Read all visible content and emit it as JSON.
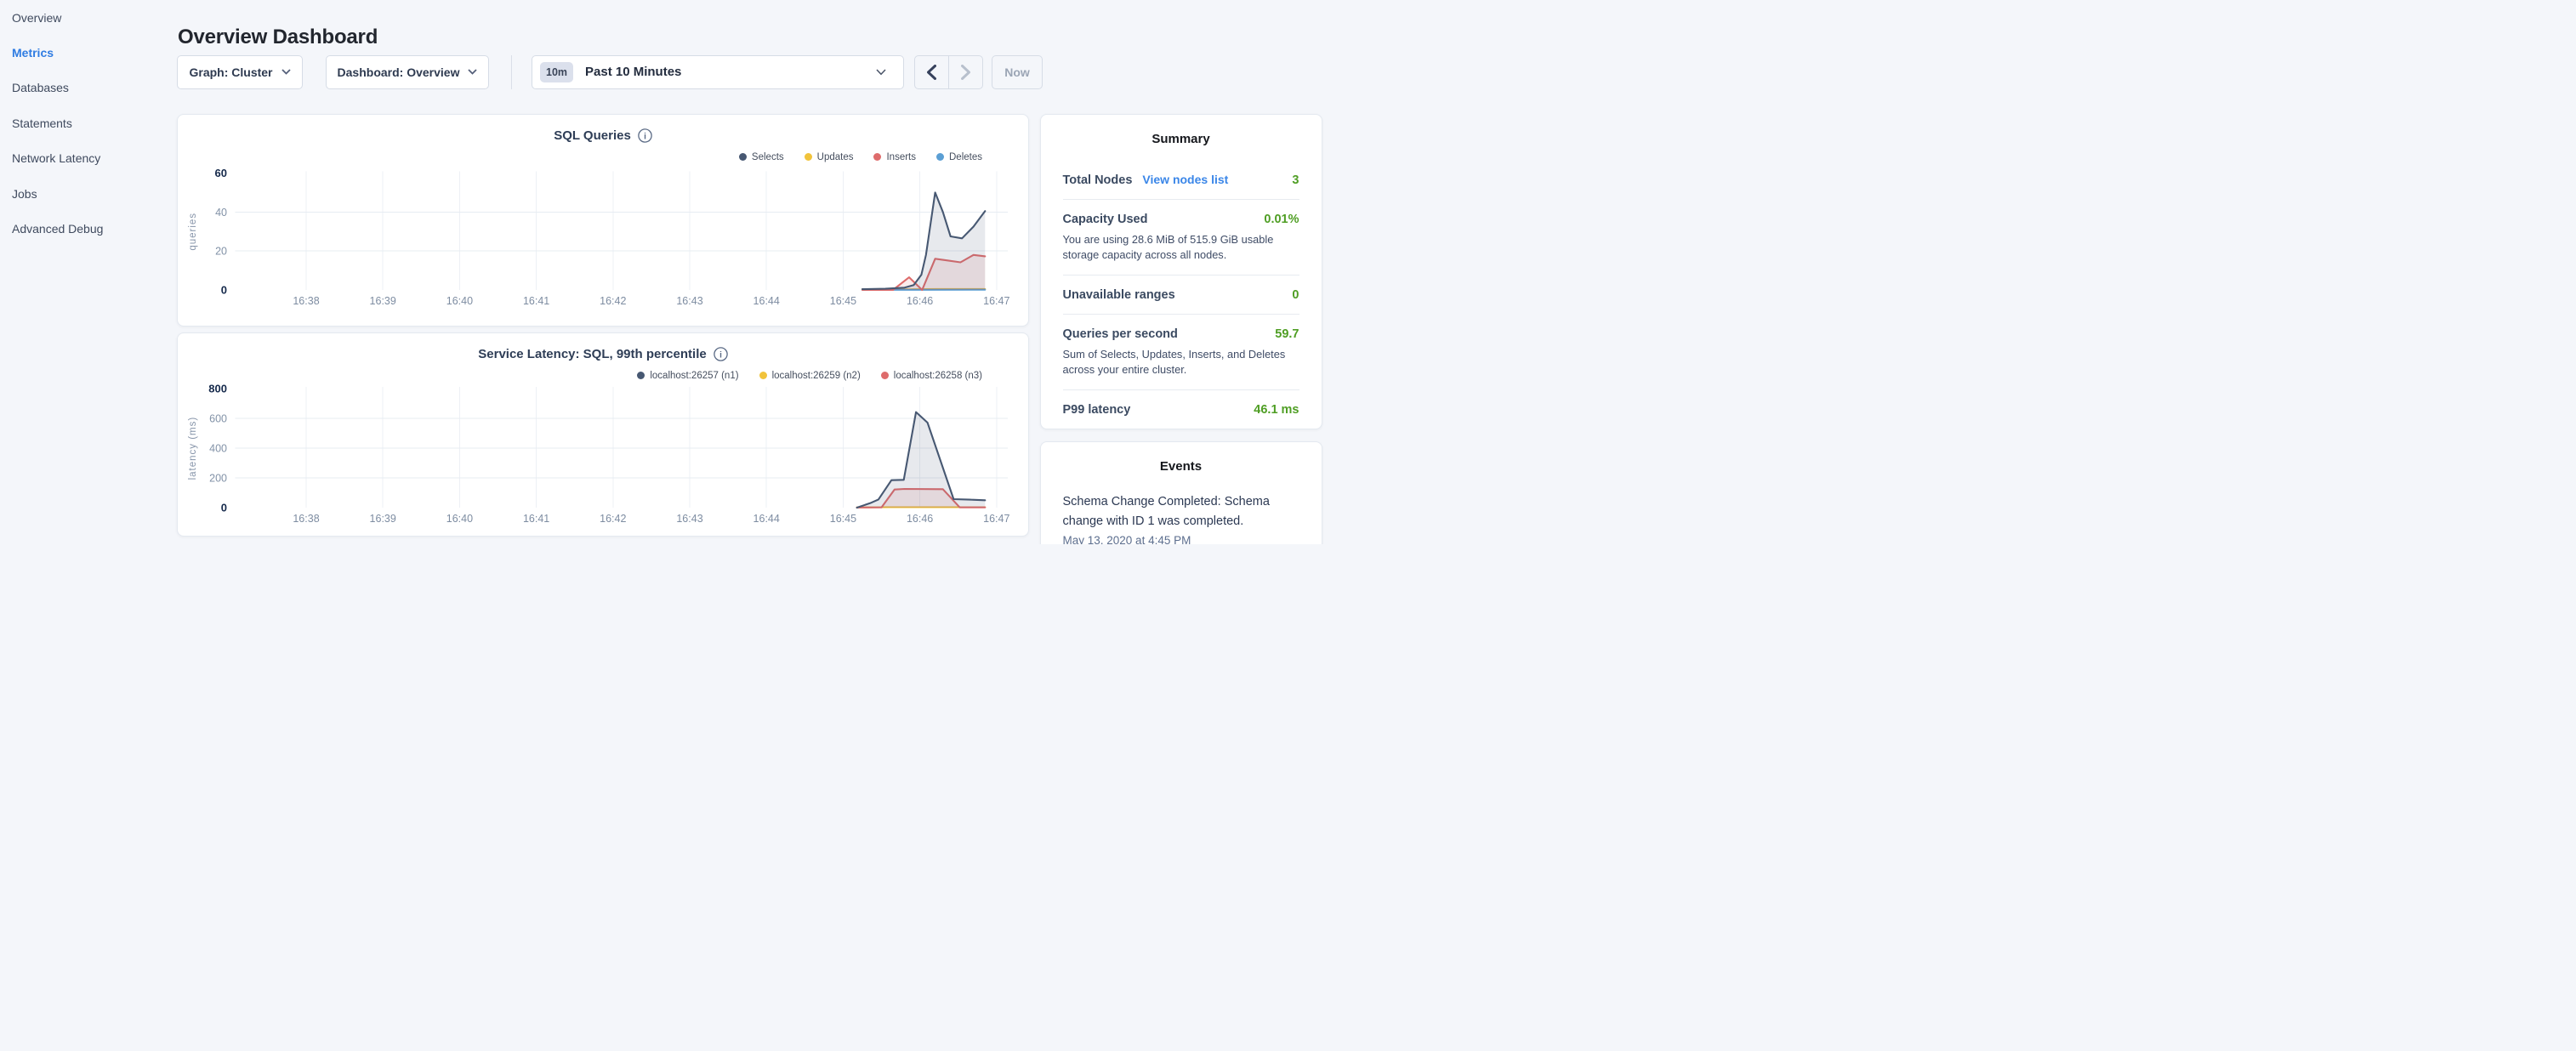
{
  "page": {
    "title": "Overview Dashboard"
  },
  "sidebar": {
    "items": [
      {
        "label": "Overview",
        "active": false
      },
      {
        "label": "Metrics",
        "active": true
      },
      {
        "label": "Databases",
        "active": false
      },
      {
        "label": "Statements",
        "active": false
      },
      {
        "label": "Network Latency",
        "active": false
      },
      {
        "label": "Jobs",
        "active": false
      },
      {
        "label": "Advanced Debug",
        "active": false
      }
    ]
  },
  "controls": {
    "graph_dropdown": "Graph: Cluster",
    "dashboard_dropdown": "Dashboard: Overview",
    "time_window_badge": "10m",
    "time_window_label": "Past 10 Minutes",
    "now_button": "Now"
  },
  "chart_data": [
    {
      "type": "line",
      "title": "SQL Queries",
      "ylabel": "queries",
      "xlabel": "",
      "ylim": [
        0,
        60
      ],
      "y_ticks": [
        0,
        20,
        40,
        60
      ],
      "x_ticks": [
        "16:38",
        "16:39",
        "16:40",
        "16:41",
        "16:42",
        "16:43",
        "16:44",
        "16:45",
        "16:46",
        "16:47"
      ],
      "grid": true,
      "legend_position": "top-right",
      "legend": [
        {
          "label": "Selects",
          "color": "#475872"
        },
        {
          "label": "Updates",
          "color": "#f1c33b"
        },
        {
          "label": "Inserts",
          "color": "#de6c6c"
        },
        {
          "label": "Deletes",
          "color": "#5b9fd4"
        }
      ],
      "series": [
        {
          "name": "Updates",
          "color": "#f1c33b",
          "fill": null,
          "points": [
            [
              45.25,
              0.4
            ],
            [
              45.8,
              0.3
            ],
            [
              46.2,
              0.5
            ],
            [
              46.85,
              0.5
            ]
          ]
        },
        {
          "name": "Deletes",
          "color": "#5b9fd4",
          "fill": null,
          "points": [
            [
              45.25,
              0.1
            ],
            [
              46.0,
              0.1
            ],
            [
              46.85,
              0.15
            ]
          ]
        },
        {
          "name": "Inserts",
          "color": "#de6c6c",
          "fill": "rgba(222,108,108,0.13)",
          "points": [
            [
              45.25,
              0
            ],
            [
              45.65,
              0
            ],
            [
              45.86,
              6.5
            ],
            [
              46.03,
              0
            ],
            [
              46.2,
              16
            ],
            [
              46.35,
              15.2
            ],
            [
              46.53,
              14.2
            ],
            [
              46.7,
              18
            ],
            [
              46.85,
              17.3
            ]
          ]
        },
        {
          "name": "Selects",
          "color": "#475872",
          "fill": "rgba(71,88,114,0.13)",
          "points": [
            [
              45.25,
              0.4
            ],
            [
              45.55,
              0.6
            ],
            [
              45.8,
              1.2
            ],
            [
              45.92,
              2.5
            ],
            [
              46.02,
              7.8
            ],
            [
              46.08,
              18
            ],
            [
              46.2,
              50
            ],
            [
              46.3,
              40
            ],
            [
              46.4,
              27.5
            ],
            [
              46.55,
              26.5
            ],
            [
              46.7,
              32.5
            ],
            [
              46.85,
              40.5
            ]
          ]
        }
      ]
    },
    {
      "type": "line",
      "title": "Service Latency: SQL, 99th percentile",
      "ylabel": "latency (ms)",
      "xlabel": "",
      "ylim": [
        0,
        800
      ],
      "y_ticks": [
        0,
        200,
        400,
        600,
        800
      ],
      "x_ticks": [
        "16:38",
        "16:39",
        "16:40",
        "16:41",
        "16:42",
        "16:43",
        "16:44",
        "16:45",
        "16:46",
        "16:47"
      ],
      "grid": true,
      "legend_position": "top-right",
      "legend": [
        {
          "label": "localhost:26257 (n1)",
          "color": "#475872"
        },
        {
          "label": "localhost:26259 (n2)",
          "color": "#f1c33b"
        },
        {
          "label": "localhost:26258 (n3)",
          "color": "#de6c6c"
        }
      ],
      "series": [
        {
          "name": "localhost:26259 (n2)",
          "color": "#f1c33b",
          "fill": null,
          "points": [
            [
              45.18,
              2
            ],
            [
              45.6,
              3
            ],
            [
              46.1,
              3
            ],
            [
              46.5,
              3
            ],
            [
              46.85,
              3
            ]
          ]
        },
        {
          "name": "localhost:26258 (n3)",
          "color": "#de6c6c",
          "fill": "rgba(222,108,108,0.13)",
          "points": [
            [
              45.18,
              1
            ],
            [
              45.5,
              2
            ],
            [
              45.67,
              122
            ],
            [
              45.8,
              126
            ],
            [
              46.3,
              124
            ],
            [
              46.52,
              2
            ],
            [
              46.85,
              2
            ]
          ]
        },
        {
          "name": "localhost:26257 (n1)",
          "color": "#475872",
          "fill": "rgba(71,88,114,0.13)",
          "points": [
            [
              45.18,
              0
            ],
            [
              45.35,
              30
            ],
            [
              45.46,
              55
            ],
            [
              45.63,
              185
            ],
            [
              45.79,
              187
            ],
            [
              45.95,
              643
            ],
            [
              46.1,
              572
            ],
            [
              46.44,
              57
            ],
            [
              46.65,
              54
            ],
            [
              46.85,
              50
            ]
          ]
        }
      ]
    }
  ],
  "summary": {
    "title": "Summary",
    "rows": {
      "total_nodes": {
        "label": "Total Nodes",
        "link": "View nodes list",
        "value": "3"
      },
      "capacity": {
        "label": "Capacity Used",
        "value": "0.01%",
        "description": "You are using 28.6 MiB of 515.9 GiB usable storage capacity across all nodes."
      },
      "unavailable": {
        "label": "Unavailable ranges",
        "value": "0"
      },
      "qps": {
        "label": "Queries per second",
        "value": "59.7",
        "description": "Sum of Selects, Updates, Inserts, and Deletes across your entire cluster."
      },
      "p99": {
        "label": "P99 latency",
        "value": "46.1 ms"
      }
    }
  },
  "events": {
    "title": "Events",
    "items": [
      {
        "text": "Schema Change Completed: Schema change with ID 1 was completed.",
        "timestamp": "May 13, 2020 at 4:45 PM"
      }
    ]
  },
  "colors": {
    "accent_blue": "#2f7ce2",
    "link_blue": "#3a86e8",
    "status_green": "#4f9e24",
    "series_navy": "#475872",
    "series_yellow": "#f1c33b",
    "series_red": "#de6c6c",
    "series_blue": "#5b9fd4",
    "page_background": "#f4f6fa"
  }
}
